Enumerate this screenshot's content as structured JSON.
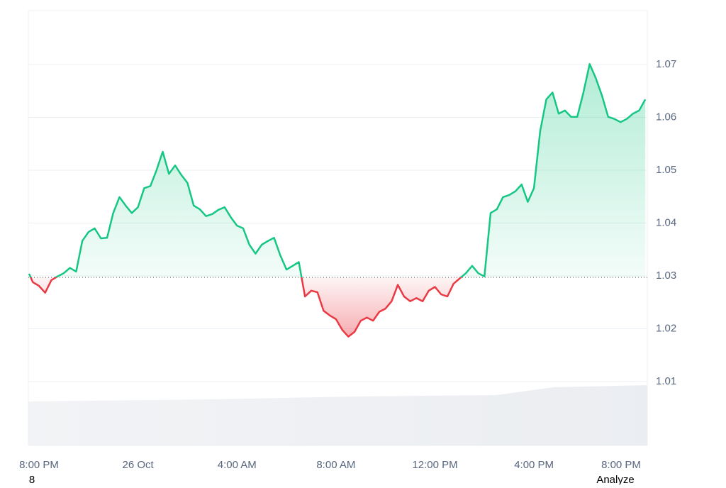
{
  "chart_data": {
    "type": "line",
    "baseline": 1.0297,
    "x": [
      -0.4,
      -0.25,
      0,
      0.25,
      0.5,
      0.75,
      1,
      1.25,
      1.5,
      1.75,
      2,
      2.25,
      2.5,
      2.75,
      3,
      3.25,
      3.5,
      3.75,
      4,
      4.25,
      4.5,
      4.75,
      5,
      5.25,
      5.5,
      5.75,
      6,
      6.25,
      6.5,
      6.75,
      7,
      7.25,
      7.5,
      7.75,
      8,
      8.25,
      8.5,
      8.75,
      9,
      9.25,
      9.5,
      9.75,
      10,
      10.25,
      10.5,
      10.75,
      11,
      11.25,
      11.5,
      11.75,
      12,
      12.25,
      12.5,
      12.75,
      13,
      13.25,
      13.5,
      13.75,
      14,
      14.25,
      14.5,
      14.75,
      15,
      15.25,
      15.5,
      15.75,
      16,
      16.25,
      16.5,
      16.75,
      17,
      17.25,
      17.5,
      17.75,
      18,
      18.25,
      18.5,
      18.75,
      19,
      19.25,
      19.5,
      19.75,
      20,
      20.25,
      20.5,
      20.75,
      21,
      21.25,
      21.5,
      21.75,
      22,
      22.25,
      22.5,
      22.75,
      23,
      23.25,
      23.5,
      23.75,
      24,
      24.25,
      24.5
    ],
    "series": [
      {
        "color_up": "#16c784",
        "color_down": "#ea3943",
        "values": [
          1.0304,
          1.0288,
          1.0281,
          1.0268,
          1.0292,
          1.0299,
          1.0305,
          1.0315,
          1.0308,
          1.0366,
          1.0383,
          1.039,
          1.0371,
          1.0372,
          1.0419,
          1.0449,
          1.0433,
          1.0419,
          1.043,
          1.0466,
          1.047,
          1.05,
          1.0535,
          1.0493,
          1.0509,
          1.0491,
          1.0476,
          1.0433,
          1.0426,
          1.0413,
          1.0417,
          1.0425,
          1.043,
          1.0411,
          1.0395,
          1.039,
          1.0359,
          1.0342,
          1.0359,
          1.0366,
          1.0372,
          1.0339,
          1.0312,
          1.0319,
          1.0326,
          1.0261,
          1.0272,
          1.0269,
          1.0234,
          1.0225,
          1.0218,
          1.0198,
          1.0185,
          1.0194,
          1.0215,
          1.0221,
          1.0215,
          1.0232,
          1.0238,
          1.0252,
          1.0283,
          1.0261,
          1.0252,
          1.0258,
          1.0252,
          1.0272,
          1.0279,
          1.0265,
          1.0261,
          1.0285,
          1.0295,
          1.0305,
          1.0319,
          1.0305,
          1.0299,
          1.0419,
          1.0426,
          1.0449,
          1.0453,
          1.046,
          1.0473,
          1.044,
          1.0466,
          1.0574,
          1.0634,
          1.0647,
          1.0607,
          1.0613,
          1.0601,
          1.0601,
          1.0647,
          1.0701,
          1.0674,
          1.0641,
          1.0601,
          1.0597,
          1.0591,
          1.0597,
          1.0607,
          1.0613,
          1.0634
        ]
      }
    ],
    "xlim": [
      -0.43,
      24.58
    ],
    "xticks": [
      {
        "value": 0,
        "label": "8:00 PM"
      },
      {
        "value": 4,
        "label": "26 Oct"
      },
      {
        "value": 8,
        "label": "4:00 AM"
      },
      {
        "value": 12,
        "label": "8:00 AM"
      },
      {
        "value": 16,
        "label": "12:00 PM"
      },
      {
        "value": 20,
        "label": "4:00 PM"
      },
      {
        "value": 24,
        "label": "8:00 PM"
      }
    ],
    "ylim": [
      0.9979,
      1.0802
    ],
    "yticks": [
      1.01,
      1.02,
      1.03,
      1.04,
      1.05,
      1.06,
      1.07
    ],
    "grid": true
  },
  "footer": {
    "left": "8",
    "right": "Analyze"
  }
}
